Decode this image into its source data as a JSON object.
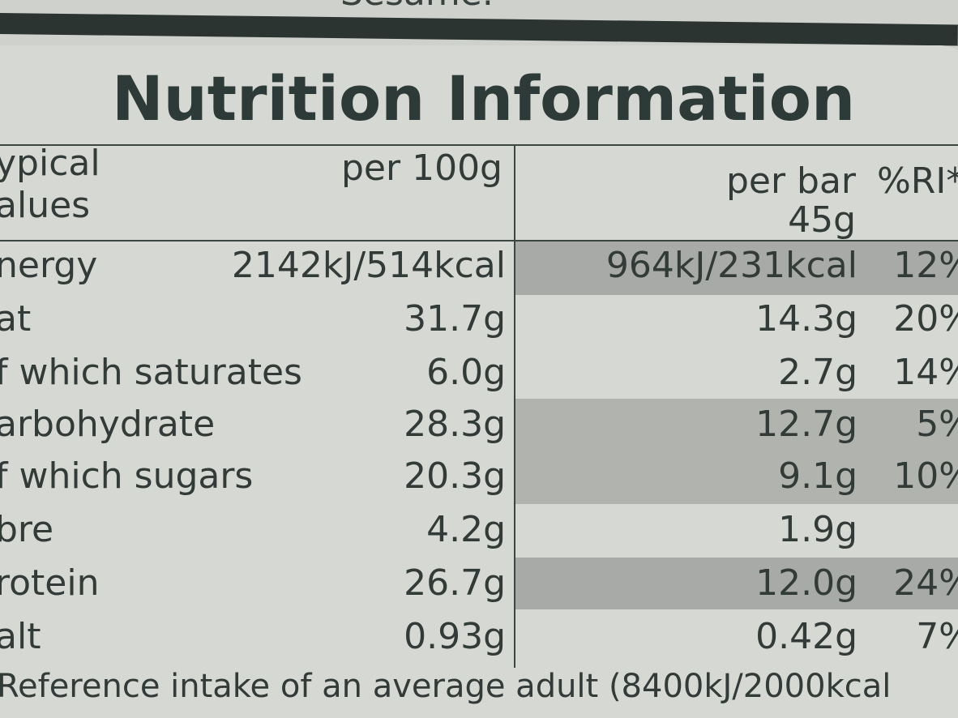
{
  "top_fragment": "Sesame.",
  "title": "Nutrition Information",
  "header": {
    "typical_values_line1": "ypical",
    "typical_values_line2": "alues",
    "per_100g": "per 100g",
    "per_bar_line1": "per bar",
    "per_bar_line2": "45g",
    "ri": "%RI*"
  },
  "rows": [
    {
      "label": "nergy",
      "per100": "2142kJ/514kcal",
      "perbar": "964kJ/231kcal",
      "ri": "12%"
    },
    {
      "label": "at",
      "per100": "31.7g",
      "perbar": "14.3g",
      "ri": "20%"
    },
    {
      "label": "f which saturates",
      "per100": "6.0g",
      "perbar": "2.7g",
      "ri": "14%"
    },
    {
      "label": "arbohydrate",
      "per100": "28.3g",
      "perbar": "12.7g",
      "ri": "5%"
    },
    {
      "label": "f which sugars",
      "per100": "20.3g",
      "perbar": "9.1g",
      "ri": "10%"
    },
    {
      "label": "bre",
      "per100": "4.2g",
      "perbar": "1.9g",
      "ri": ""
    },
    {
      "label": "rotein",
      "per100": "26.7g",
      "perbar": "12.0g",
      "ri": "24%"
    },
    {
      "label": "alt",
      "per100": "0.93g",
      "perbar": "0.42g",
      "ri": "7%"
    }
  ],
  "footer": "Reference intake of an average adult (8400kJ/2000kcal"
}
